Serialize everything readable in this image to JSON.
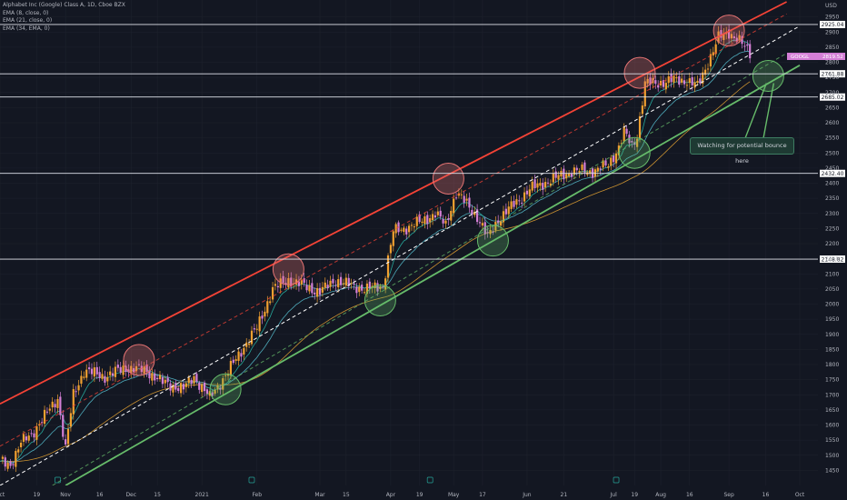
{
  "legend": {
    "title": "Alphabet Inc (Google) Class A, 1D, Cboe BZX",
    "ema8": "EMA (8, close, 0)",
    "ema21": "EMA (21, close, 0)",
    "ema34": "EMA (34, EMA, 0)"
  },
  "annotation": "Watching for potential bounce here",
  "colors": {
    "background": "#131722",
    "grid": "#1e222d",
    "candle_up": "#f0a030",
    "candle_down": "#d47fd6",
    "upper_channel": "#f44336",
    "lower_channel": "#66bb6a",
    "mid_channel": "#ffffff",
    "ema8": "#26a69a",
    "ema21": "#4da8b8",
    "ema34": "#c89030",
    "resistance_circle": "#e57373",
    "support_circle": "#66bb6a"
  },
  "chart_data": {
    "type": "candlestick",
    "y_unit": "USD",
    "ylim": [
      1400,
      3000
    ],
    "y_ticks": [
      1450,
      1500,
      1550,
      1600,
      1650,
      1700,
      1750,
      1800,
      1850,
      1900,
      1950,
      2000,
      2050,
      2100,
      2150,
      2200,
      2250,
      2300,
      2350,
      2400,
      2450,
      2500,
      2550,
      2600,
      2650,
      2700,
      2750,
      2800,
      2850,
      2900,
      2950
    ],
    "x_ticks": [
      {
        "label": "Oct",
        "i": 0
      },
      {
        "label": "19",
        "i": 14
      },
      {
        "label": "Nov",
        "i": 25
      },
      {
        "label": "16",
        "i": 38
      },
      {
        "label": "Dec",
        "i": 50
      },
      {
        "label": "15",
        "i": 60
      },
      {
        "label": "2021",
        "i": 77
      },
      {
        "label": "Feb",
        "i": 98
      },
      {
        "label": "Mar",
        "i": 122
      },
      {
        "label": "15",
        "i": 132
      },
      {
        "label": "Apr",
        "i": 149
      },
      {
        "label": "19",
        "i": 160
      },
      {
        "label": "May",
        "i": 173
      },
      {
        "label": "17",
        "i": 184
      },
      {
        "label": "Jun",
        "i": 201
      },
      {
        "label": "21",
        "i": 215
      },
      {
        "label": "Jul",
        "i": 234
      },
      {
        "label": "19",
        "i": 242
      },
      {
        "label": "Aug",
        "i": 252
      },
      {
        "label": "16",
        "i": 263
      },
      {
        "label": "Sep",
        "i": 278
      },
      {
        "label": "16",
        "i": 292
      },
      {
        "label": "Oct",
        "i": 305
      }
    ],
    "horizontal_levels": [
      {
        "price": 2925.04,
        "label": "2925.04"
      },
      {
        "price": 2761.88,
        "label": "2761.88"
      },
      {
        "price": 2685.02,
        "label": "2685.02"
      },
      {
        "price": 2432.4,
        "label": "2432.40"
      },
      {
        "price": 2148.82,
        "label": "2148.82"
      }
    ],
    "last_price": {
      "label": "GOOGL",
      "price": 2819.52,
      "text": "2819.52"
    },
    "channels": [
      {
        "name": "upper",
        "style": "solid",
        "from": {
          "i": 0,
          "p": 1670
        },
        "to": {
          "i": 300,
          "p": 3000
        }
      },
      {
        "name": "upper-inner",
        "style": "dashed",
        "from": {
          "i": 0,
          "p": 1530
        },
        "to": {
          "i": 300,
          "p": 2960
        }
      },
      {
        "name": "middle",
        "style": "dashed",
        "from": {
          "i": 0,
          "p": 1400
        },
        "to": {
          "i": 305,
          "p": 2920
        }
      },
      {
        "name": "lower-inner",
        "style": "dashed",
        "from": {
          "i": 20,
          "p": 1400
        },
        "to": {
          "i": 300,
          "p": 2830
        }
      },
      {
        "name": "lower",
        "style": "solid",
        "from": {
          "i": 25,
          "p": 1400
        },
        "to": {
          "i": 305,
          "p": 2790
        }
      }
    ],
    "resistance_circles": [
      {
        "i": 53,
        "p": 1815
      },
      {
        "i": 110,
        "p": 2115
      },
      {
        "i": 171,
        "p": 2415
      },
      {
        "i": 244,
        "p": 2765
      },
      {
        "i": 278,
        "p": 2905
      }
    ],
    "support_circles": [
      {
        "i": 86,
        "p": 1718
      },
      {
        "i": 145,
        "p": 2012
      },
      {
        "i": 188,
        "p": 2210
      },
      {
        "i": 242,
        "p": 2500
      },
      {
        "i": 293,
        "p": 2755
      }
    ],
    "anchors": [
      [
        0,
        1480
      ],
      [
        4,
        1470
      ],
      [
        8,
        1540
      ],
      [
        12,
        1570
      ],
      [
        18,
        1640
      ],
      [
        22,
        1690
      ],
      [
        25,
        1520
      ],
      [
        28,
        1700
      ],
      [
        32,
        1780
      ],
      [
        40,
        1760
      ],
      [
        48,
        1790
      ],
      [
        56,
        1780
      ],
      [
        62,
        1740
      ],
      [
        70,
        1720
      ],
      [
        74,
        1760
      ],
      [
        80,
        1690
      ],
      [
        84,
        1740
      ],
      [
        88,
        1790
      ],
      [
        93,
        1860
      ],
      [
        98,
        1920
      ],
      [
        104,
        2050
      ],
      [
        110,
        2080
      ],
      [
        116,
        2060
      ],
      [
        122,
        2040
      ],
      [
        128,
        2080
      ],
      [
        134,
        2060
      ],
      [
        140,
        2050
      ],
      [
        146,
        2060
      ],
      [
        150,
        2240
      ],
      [
        154,
        2250
      ],
      [
        160,
        2270
      ],
      [
        166,
        2300
      ],
      [
        170,
        2260
      ],
      [
        172,
        2320
      ],
      [
        174,
        2370
      ],
      [
        178,
        2330
      ],
      [
        182,
        2290
      ],
      [
        186,
        2220
      ],
      [
        190,
        2280
      ],
      [
        196,
        2330
      ],
      [
        202,
        2380
      ],
      [
        210,
        2410
      ],
      [
        218,
        2440
      ],
      [
        226,
        2440
      ],
      [
        232,
        2460
      ],
      [
        236,
        2520
      ],
      [
        238,
        2570
      ],
      [
        241,
        2520
      ],
      [
        243,
        2560
      ],
      [
        246,
        2730
      ],
      [
        250,
        2730
      ],
      [
        256,
        2740
      ],
      [
        262,
        2740
      ],
      [
        266,
        2720
      ],
      [
        270,
        2800
      ],
      [
        274,
        2880
      ],
      [
        278,
        2900
      ],
      [
        282,
        2870
      ],
      [
        286,
        2830
      ]
    ]
  }
}
